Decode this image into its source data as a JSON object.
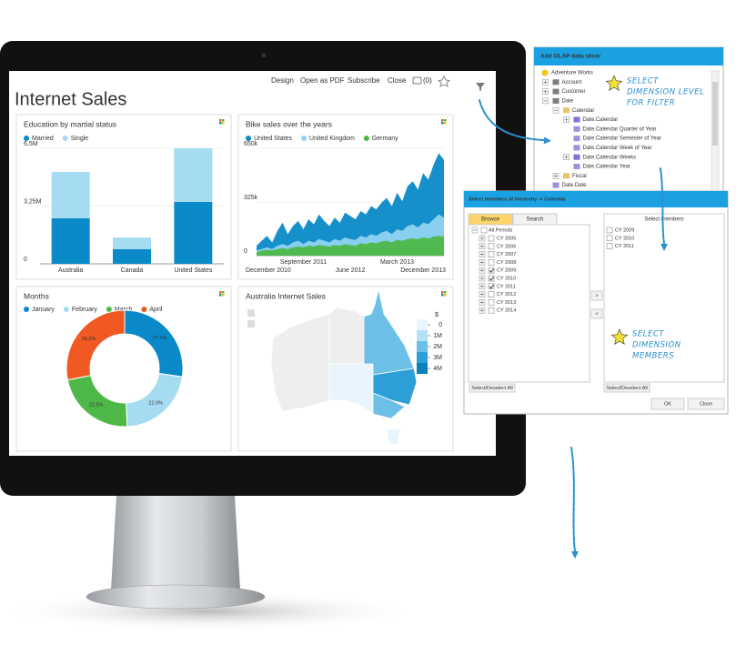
{
  "dashboard": {
    "title": "Internet Sales",
    "toolbar": [
      "Design",
      "Open as PDF",
      "Subscribe",
      "Close"
    ],
    "comments": "(0)"
  },
  "chart_data": [
    {
      "type": "bar",
      "stacked": true,
      "title": "Education by martial status",
      "categories": [
        "Australia",
        "Canada",
        "United States"
      ],
      "series": [
        {
          "name": "Married",
          "color": "#0a8ac8",
          "values": [
            2560000,
            820000,
            3480000
          ]
        },
        {
          "name": "Single",
          "color": "#a6dcf2",
          "values": [
            2610000,
            660000,
            3020000
          ]
        }
      ],
      "ylim": [
        0,
        6500000
      ],
      "yticks": [
        0,
        {
          "value": 3250000,
          "label": "3,25M"
        },
        {
          "value": 6500000,
          "label": "6,5M"
        }
      ]
    },
    {
      "type": "area",
      "title": "Bike sales over the years",
      "categories": [
        "December 2010",
        null,
        null,
        null,
        null,
        null,
        null,
        null,
        null,
        "September 2011",
        null,
        null,
        null,
        null,
        null,
        null,
        null,
        null,
        "June 2012",
        null,
        null,
        null,
        null,
        null,
        null,
        null,
        null,
        "March 2013",
        null,
        null,
        null,
        null,
        null,
        null,
        null,
        null,
        "December 2013"
      ],
      "series": [
        {
          "name": "United States",
          "color": "#0a8ac8",
          "values": [
            60000,
            90000,
            120000,
            80000,
            150000,
            200000,
            130000,
            180000,
            210000,
            160000,
            220000,
            190000,
            250000,
            210000,
            180000,
            230000,
            200000,
            260000,
            240000,
            220000,
            270000,
            250000,
            300000,
            280000,
            320000,
            350000,
            300000,
            380000,
            330000,
            420000,
            450000,
            400000,
            500000,
            460000,
            550000,
            620000,
            580000
          ]
        },
        {
          "name": "United Kingdom",
          "color": "#8fd3f0",
          "values": [
            30000,
            40000,
            50000,
            40000,
            60000,
            70000,
            60000,
            80000,
            90000,
            70000,
            90000,
            80000,
            100000,
            90000,
            80000,
            100000,
            90000,
            110000,
            100000,
            95000,
            120000,
            110000,
            130000,
            120000,
            140000,
            150000,
            130000,
            160000,
            150000,
            180000,
            190000,
            170000,
            200000,
            190000,
            220000,
            250000,
            230000
          ]
        },
        {
          "name": "Germany",
          "color": "#4db848",
          "values": [
            20000,
            30000,
            35000,
            30000,
            40000,
            45000,
            40000,
            50000,
            55000,
            50000,
            60000,
            55000,
            65000,
            60000,
            55000,
            65000,
            60000,
            70000,
            65000,
            60000,
            75000,
            70000,
            80000,
            75000,
            85000,
            90000,
            80000,
            95000,
            90000,
            100000,
            105000,
            100000,
            110000,
            105000,
            115000,
            120000,
            115000
          ]
        }
      ],
      "ylim": [
        0,
        650000
      ],
      "yticks": [
        0,
        {
          "value": 325000,
          "label": "325k"
        },
        {
          "value": 650000,
          "label": "650k"
        }
      ]
    },
    {
      "type": "donut",
      "title": "Months",
      "categories": [
        "January",
        "February",
        "March",
        "April"
      ],
      "colors": [
        "#0a8ac8",
        "#a6dcf2",
        "#4db848",
        "#f05a22"
      ],
      "values": [
        27.3,
        22.0,
        22.5,
        28.2
      ],
      "value_labels": [
        "27.3%",
        "22.0%",
        "22.5%",
        "28.2%"
      ]
    },
    {
      "type": "map",
      "title": "Australia Internet Sales",
      "legend_title": "$",
      "scale_ticks": [
        0,
        {
          "value": 1000000,
          "label": "1M"
        },
        {
          "value": 2000000,
          "label": "2M"
        },
        {
          "value": 3000000,
          "label": "3M"
        },
        {
          "value": 4000000,
          "label": "4M"
        }
      ],
      "colors": [
        "#e9f5fc",
        "#b5e0f5",
        "#6cc0e8",
        "#2c9fd6",
        "#0a7fb9"
      ],
      "values": [
        100000,
        50000,
        600000,
        2200000,
        3900000,
        2800000,
        900000
      ]
    }
  ],
  "slicer": {
    "title": "Add OLAP data slicer",
    "tree": [
      "Adventure Works",
      "Account",
      "Customer",
      "Date",
      "Calendar",
      "Date.Calendar",
      "Date.Calendar Quarter of Year",
      "Date.Calendar Semester of Year",
      "Date.Calendar Week of Year",
      "Date.Calendar Weeks",
      "Date.Calendar Year",
      "Fiscal",
      "Date.Date"
    ]
  },
  "members": {
    "title": "Select members of hierarchy -> Calendar",
    "tabs": [
      "Browse",
      "Search"
    ],
    "root": "All Periods",
    "items": [
      {
        "label": "CY 2005",
        "checked": false
      },
      {
        "label": "CY 2006",
        "checked": false
      },
      {
        "label": "CY 2007",
        "checked": false
      },
      {
        "label": "CY 2008",
        "checked": false
      },
      {
        "label": "CY 2009",
        "checked": true
      },
      {
        "label": "CY 2010",
        "checked": true
      },
      {
        "label": "CY 2011",
        "checked": true
      },
      {
        "label": "CY 2012",
        "checked": false
      },
      {
        "label": "CY 2013",
        "checked": false
      },
      {
        "label": "CY 2014",
        "checked": false
      }
    ],
    "selected_header": "Select members",
    "selected": [
      "CY 2009",
      "CY 2010",
      "CY 2011"
    ],
    "add": ">",
    "remove": "<",
    "select_all_left": "Select/Deselect All",
    "select_all_right": "Select/Deselect All",
    "ok": "OK",
    "close": "Close"
  },
  "annotations": {
    "level": [
      "SELECT",
      "DIMENSION LEVEL",
      "FOR FILTER"
    ],
    "members": [
      "SELECT",
      "DIMENSION",
      "MEMBERS"
    ]
  }
}
